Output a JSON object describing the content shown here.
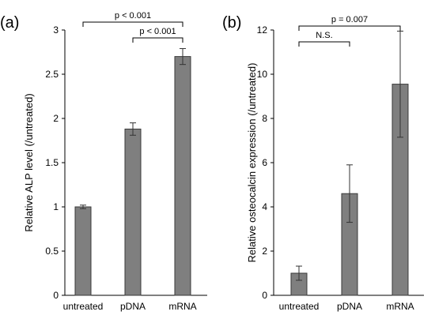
{
  "chart_data": [
    {
      "type": "bar",
      "panel_label": "(a)",
      "title": "",
      "xlabel": "",
      "ylabel": "Relative ALP level (/untreated)",
      "categories": [
        "untreated",
        "pDNA",
        "mRNA"
      ],
      "values": [
        1.0,
        1.88,
        2.7
      ],
      "errors": [
        0.02,
        0.07,
        0.09
      ],
      "ylim": [
        0,
        3
      ],
      "yticks": [
        0,
        0.5,
        1,
        1.5,
        2,
        2.5,
        3
      ],
      "ytick_labels": [
        "0",
        "0.5",
        "1",
        "1.5",
        "2",
        "2.5",
        "3"
      ],
      "bar_color": "#7f7f7f",
      "grid": false,
      "annotations": [
        {
          "text": "p < 0.001",
          "from": "untreated",
          "to": "mRNA",
          "level": 2
        },
        {
          "text": "p < 0.001",
          "from": "pDNA",
          "to": "mRNA",
          "level": 1
        }
      ]
    },
    {
      "type": "bar",
      "panel_label": "(b)",
      "title": "",
      "xlabel": "",
      "ylabel": "Relative osteocalcin expression (/untreated)",
      "categories": [
        "untreated",
        "pDNA",
        "mRNA"
      ],
      "values": [
        1.0,
        4.6,
        9.55
      ],
      "errors": [
        0.32,
        1.3,
        2.4
      ],
      "ylim": [
        0,
        12
      ],
      "yticks": [
        0,
        2,
        4,
        6,
        8,
        10,
        12
      ],
      "ytick_labels": [
        "0",
        "2",
        "4",
        "6",
        "8",
        "10",
        "12"
      ],
      "bar_color": "#7f7f7f",
      "grid": false,
      "annotations": [
        {
          "text": "p = 0.007",
          "from": "untreated",
          "to": "mRNA",
          "level": 2
        },
        {
          "text": "N.S.",
          "from": "untreated",
          "to": "pDNA",
          "level": 1
        }
      ]
    }
  ]
}
